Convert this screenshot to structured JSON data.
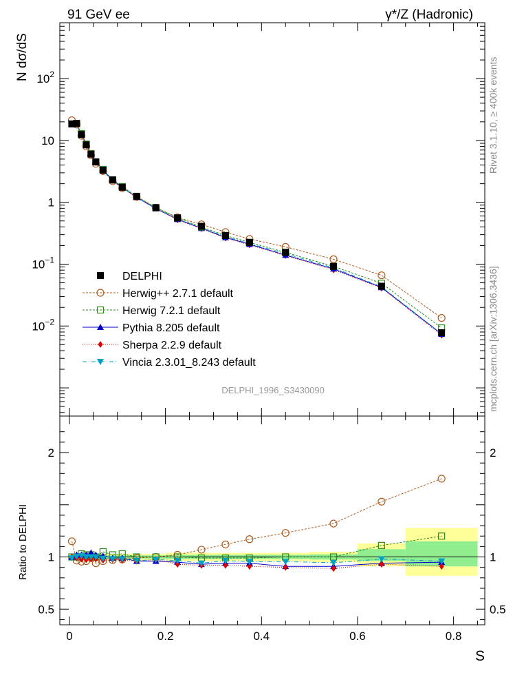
{
  "header": {
    "left": "91 GeV ee",
    "right": "γ*/Z (Hadronic)"
  },
  "side": {
    "rivet": "Rivet 3.1.10, ≥ 400k events",
    "mcplots": "mcplots.cern.ch [arXiv:1306.3436]"
  },
  "watermark": "DELPHI_1996_S3430090",
  "chart_data": [
    {
      "type": "line",
      "panel": "main",
      "ylabel": "N dσ/dS",
      "xlabel": "S",
      "yscale": "log",
      "xlim": [
        -0.02,
        0.865
      ],
      "ylim": [
        0.00035,
        800
      ],
      "yticks": [
        {
          "value": 0.01,
          "base": "10",
          "exp": "−2"
        },
        {
          "value": 0.1,
          "base": "10",
          "exp": "−1"
        },
        {
          "value": 1,
          "base": "1",
          "exp": ""
        },
        {
          "value": 10,
          "base": "10",
          "exp": ""
        },
        {
          "value": 100,
          "base": "10",
          "exp": "2"
        }
      ],
      "x": [
        0.005,
        0.015,
        0.025,
        0.035,
        0.045,
        0.055,
        0.07,
        0.09,
        0.11,
        0.14,
        0.18,
        0.225,
        0.275,
        0.325,
        0.375,
        0.45,
        0.55,
        0.65,
        0.775
      ],
      "series": [
        {
          "name": "DELPHI",
          "color": "#000000",
          "marker": "square-filled",
          "dash": "",
          "values": [
            18.5,
            18.8,
            12.5,
            8.5,
            6.0,
            4.5,
            3.3,
            2.3,
            1.75,
            1.25,
            0.82,
            0.56,
            0.41,
            0.29,
            0.225,
            0.155,
            0.092,
            0.044,
            0.0078
          ]
        },
        {
          "name": "Herwig++ 2.7.1 default",
          "color": "#b05a1c",
          "marker": "circle-open",
          "dash": "3,2",
          "values": [
            21.2,
            18.1,
            11.9,
            8.0,
            5.75,
            4.2,
            3.2,
            2.2,
            1.7,
            1.22,
            0.82,
            0.57,
            0.44,
            0.33,
            0.255,
            0.19,
            0.12,
            0.066,
            0.0135
          ]
        },
        {
          "name": "Herwig 7.2.1 default",
          "color": "#2e8b1e",
          "marker": "square-open",
          "dash": "3,2",
          "values": [
            18.5,
            18.8,
            12.9,
            8.7,
            6.1,
            4.5,
            3.4,
            2.3,
            1.79,
            1.25,
            0.82,
            0.56,
            0.4,
            0.29,
            0.225,
            0.155,
            0.092,
            0.049,
            0.0093
          ]
        },
        {
          "name": "Pythia 8.205 default",
          "color": "#0000cc",
          "marker": "triangle-up",
          "dash": "",
          "values": [
            18.5,
            19.0,
            12.6,
            8.6,
            6.2,
            4.6,
            3.3,
            2.3,
            1.75,
            1.2,
            0.79,
            0.53,
            0.38,
            0.27,
            0.21,
            0.14,
            0.084,
            0.042,
            0.0074
          ]
        },
        {
          "name": "Sherpa 2.2.9 default",
          "color": "#e00000",
          "marker": "diamond",
          "dash": "1,2",
          "values": [
            18.5,
            18.6,
            12.3,
            8.3,
            5.9,
            4.4,
            3.2,
            2.25,
            1.7,
            1.2,
            0.8,
            0.52,
            0.375,
            0.265,
            0.205,
            0.138,
            0.081,
            0.041,
            0.0071
          ]
        },
        {
          "name": "Vincia 2.3.01_8.243 default",
          "color": "#00a0c0",
          "marker": "triangle-down",
          "dash": "6,3,1,3",
          "values": [
            18.3,
            18.9,
            12.6,
            8.5,
            6.0,
            4.5,
            3.25,
            2.25,
            1.72,
            1.21,
            0.8,
            0.54,
            0.385,
            0.28,
            0.215,
            0.148,
            0.087,
            0.043,
            0.0075
          ]
        }
      ]
    },
    {
      "type": "line",
      "panel": "ratio",
      "ylabel": "Ratio to DELPHI",
      "xlabel": "S",
      "ylim": [
        0.35,
        2.35
      ],
      "yticks": [
        0.5,
        1,
        2
      ],
      "xticks": [
        0,
        0.2,
        0.4,
        0.6,
        0.8
      ],
      "xtick_labels": [
        "0",
        "0.2",
        "0.4",
        "0.6",
        "0.8"
      ],
      "uncertainty_bands": {
        "yellow_color": "#ffff99",
        "green_color": "#90ee90",
        "bins": [
          {
            "x": [
              0.0,
              0.01
            ],
            "yellow": [
              0.97,
              1.03
            ],
            "green": [
              0.985,
              1.015
            ]
          },
          {
            "x": [
              0.01,
              0.02
            ],
            "yellow": [
              0.97,
              1.03
            ],
            "green": [
              0.985,
              1.015
            ]
          },
          {
            "x": [
              0.02,
              0.03
            ],
            "yellow": [
              0.97,
              1.03
            ],
            "green": [
              0.985,
              1.015
            ]
          },
          {
            "x": [
              0.03,
              0.04
            ],
            "yellow": [
              0.97,
              1.03
            ],
            "green": [
              0.985,
              1.015
            ]
          },
          {
            "x": [
              0.04,
              0.05
            ],
            "yellow": [
              0.97,
              1.03
            ],
            "green": [
              0.985,
              1.015
            ]
          },
          {
            "x": [
              0.05,
              0.06
            ],
            "yellow": [
              0.97,
              1.03
            ],
            "green": [
              0.985,
              1.015
            ]
          },
          {
            "x": [
              0.06,
              0.08
            ],
            "yellow": [
              0.97,
              1.03
            ],
            "green": [
              0.985,
              1.015
            ]
          },
          {
            "x": [
              0.08,
              0.1
            ],
            "yellow": [
              0.97,
              1.03
            ],
            "green": [
              0.985,
              1.015
            ]
          },
          {
            "x": [
              0.1,
              0.12
            ],
            "yellow": [
              0.97,
              1.03
            ],
            "green": [
              0.985,
              1.015
            ]
          },
          {
            "x": [
              0.12,
              0.16
            ],
            "yellow": [
              0.97,
              1.03
            ],
            "green": [
              0.985,
              1.015
            ]
          },
          {
            "x": [
              0.16,
              0.2
            ],
            "yellow": [
              0.97,
              1.03
            ],
            "green": [
              0.985,
              1.015
            ]
          },
          {
            "x": [
              0.2,
              0.25
            ],
            "yellow": [
              0.96,
              1.04
            ],
            "green": [
              0.98,
              1.02
            ]
          },
          {
            "x": [
              0.25,
              0.3
            ],
            "yellow": [
              0.96,
              1.04
            ],
            "green": [
              0.98,
              1.02
            ]
          },
          {
            "x": [
              0.3,
              0.35
            ],
            "yellow": [
              0.96,
              1.04
            ],
            "green": [
              0.98,
              1.02
            ]
          },
          {
            "x": [
              0.35,
              0.4
            ],
            "yellow": [
              0.96,
              1.04
            ],
            "green": [
              0.98,
              1.02
            ]
          },
          {
            "x": [
              0.4,
              0.5
            ],
            "yellow": [
              0.96,
              1.04
            ],
            "green": [
              0.98,
              1.02
            ]
          },
          {
            "x": [
              0.5,
              0.6
            ],
            "yellow": [
              0.95,
              1.05
            ],
            "green": [
              0.975,
              1.025
            ]
          },
          {
            "x": [
              0.6,
              0.7
            ],
            "yellow": [
              0.91,
              1.13
            ],
            "green": [
              0.96,
              1.075
            ]
          },
          {
            "x": [
              0.7,
              0.85
            ],
            "yellow": [
              0.82,
              1.28
            ],
            "green": [
              0.91,
              1.15
            ]
          }
        ]
      },
      "x": [
        0.005,
        0.015,
        0.025,
        0.035,
        0.045,
        0.055,
        0.07,
        0.09,
        0.11,
        0.14,
        0.18,
        0.225,
        0.275,
        0.325,
        0.375,
        0.45,
        0.55,
        0.65,
        0.775
      ],
      "series": [
        {
          "name": "Herwig++ 2.7.1 default",
          "color": "#b05a1c",
          "marker": "circle-open",
          "dash": "3,2",
          "values": [
            1.15,
            0.965,
            0.955,
            0.96,
            0.99,
            0.94,
            0.96,
            0.97,
            0.975,
            0.99,
            1.0,
            1.02,
            1.07,
            1.12,
            1.17,
            1.23,
            1.32,
            1.53,
            1.75
          ]
        },
        {
          "name": "Herwig 7.2.1 default",
          "color": "#2e8b1e",
          "marker": "square-open",
          "dash": "3,2",
          "values": [
            1.0,
            1.0,
            1.03,
            1.02,
            1.02,
            1.0,
            1.05,
            1.02,
            1.03,
            1.0,
            1.0,
            1.0,
            0.99,
            0.99,
            0.99,
            1.0,
            1.0,
            1.11,
            1.2
          ]
        },
        {
          "name": "Pythia 8.205 default",
          "color": "#0000cc",
          "marker": "triangle-up",
          "dash": "",
          "values": [
            1.0,
            1.02,
            1.02,
            1.02,
            1.04,
            1.02,
            1.01,
            0.99,
            0.99,
            0.96,
            0.96,
            0.95,
            0.93,
            0.94,
            0.94,
            0.91,
            0.91,
            0.94,
            0.95
          ]
        },
        {
          "name": "Sherpa 2.2.9 default",
          "color": "#e00000",
          "marker": "diamond",
          "dash": "1,2",
          "values": [
            1.0,
            0.99,
            0.98,
            0.975,
            0.98,
            0.98,
            0.97,
            0.975,
            0.97,
            0.96,
            0.975,
            0.93,
            0.92,
            0.92,
            0.91,
            0.9,
            0.89,
            0.93,
            0.91
          ]
        },
        {
          "name": "Vincia 2.3.01_8.243 default",
          "color": "#00a0c0",
          "marker": "triangle-down",
          "dash": "6,3,1,3",
          "values": [
            0.99,
            1.005,
            1.01,
            1.0,
            1.0,
            1.0,
            0.985,
            0.98,
            0.98,
            0.965,
            0.975,
            0.965,
            0.94,
            0.965,
            0.955,
            0.955,
            0.945,
            0.98,
            0.96
          ]
        }
      ]
    }
  ]
}
